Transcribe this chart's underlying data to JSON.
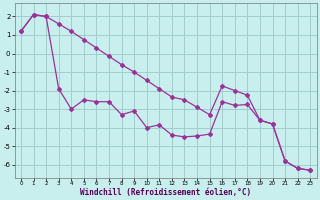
{
  "xlabel": "Windchill (Refroidissement éolien,°C)",
  "bg_color": "#c8eeee",
  "grid_color": "#a0cccc",
  "line_color": "#993399",
  "line1_x": [
    0,
    1,
    2,
    3,
    4,
    5,
    6,
    7,
    8,
    9,
    10,
    11,
    12,
    13,
    14,
    15,
    16,
    17,
    18,
    19,
    20,
    21,
    22,
    23
  ],
  "line1_y": [
    1.2,
    2.1,
    2.0,
    -1.9,
    -3.0,
    -2.5,
    -2.6,
    -2.6,
    -3.3,
    -3.1,
    -4.0,
    -3.85,
    -4.4,
    -4.5,
    -4.45,
    -4.35,
    -2.6,
    -2.8,
    -2.75,
    -3.6,
    -3.8,
    -5.8,
    -6.2,
    -6.3
  ],
  "line2_x": [
    0,
    1,
    2,
    3,
    4,
    5,
    6,
    7,
    8,
    9,
    10,
    11,
    12,
    13,
    14,
    15,
    16,
    17,
    18,
    19,
    20,
    21,
    22,
    23
  ],
  "line2_y": [
    1.2,
    2.1,
    2.0,
    1.6,
    1.2,
    0.75,
    0.3,
    -0.15,
    -0.6,
    -1.0,
    -1.45,
    -1.9,
    -2.35,
    -2.5,
    -2.9,
    -3.3,
    -1.75,
    -2.0,
    -2.25,
    -3.6,
    -3.8,
    -5.8,
    -6.2,
    -6.3
  ],
  "xlim": [
    -0.5,
    23.5
  ],
  "ylim": [
    -6.7,
    2.7
  ],
  "yticks": [
    2,
    1,
    0,
    -1,
    -2,
    -3,
    -4,
    -5,
    -6
  ],
  "xticks": [
    0,
    1,
    2,
    3,
    4,
    5,
    6,
    7,
    8,
    9,
    10,
    11,
    12,
    13,
    14,
    15,
    16,
    17,
    18,
    19,
    20,
    21,
    22,
    23
  ]
}
